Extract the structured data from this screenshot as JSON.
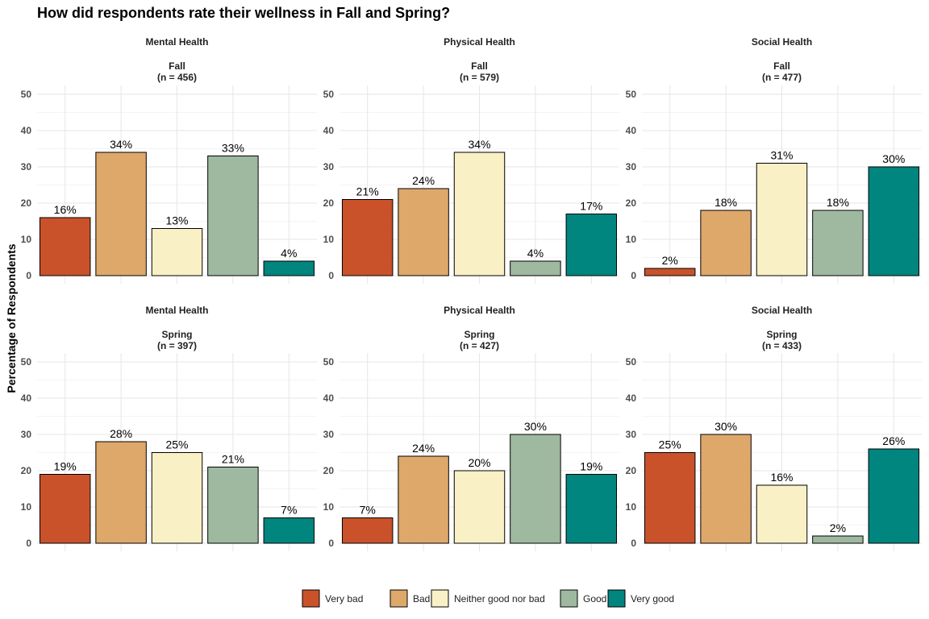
{
  "chart_data": {
    "type": "bar",
    "title": "How did respondents rate their wellness in Fall and Spring?",
    "ylabel": "Percentage of Respondents",
    "ylim": [
      0,
      50
    ],
    "yticks": [
      0,
      10,
      20,
      30,
      40,
      50
    ],
    "grid": true,
    "legend_position": "bottom",
    "categories": [
      "Very bad",
      "Bad",
      "Neither good nor bad",
      "Good",
      "Very good"
    ],
    "colors": {
      "Very bad": "#C9522B",
      "Bad": "#DEA86B",
      "Neither good nor bad": "#F9F0C6",
      "Good": "#9EB99F",
      "Very good": "#00857F"
    },
    "panels": [
      {
        "facet": "Mental Health",
        "season": "Fall",
        "n_label": "(n = 456)",
        "values": [
          16,
          34,
          13,
          33,
          4
        ],
        "labels": [
          "16%",
          "34%",
          "13%",
          "33%",
          "4%"
        ]
      },
      {
        "facet": "Physical Health",
        "season": "Fall",
        "n_label": "(n = 579)",
        "values": [
          21,
          24,
          34,
          4,
          17
        ],
        "labels": [
          "21%",
          "24%",
          "34%",
          "4%",
          "17%"
        ]
      },
      {
        "facet": "Social Health",
        "season": "Fall",
        "n_label": "(n = 477)",
        "values": [
          2,
          18,
          31,
          18,
          30
        ],
        "labels": [
          "2%",
          "18%",
          "31%",
          "18%",
          "30%"
        ]
      },
      {
        "facet": "Mental Health",
        "season": "Spring",
        "n_label": "(n = 397)",
        "values": [
          19,
          28,
          25,
          21,
          7
        ],
        "labels": [
          "19%",
          "28%",
          "25%",
          "21%",
          "7%"
        ]
      },
      {
        "facet": "Physical Health",
        "season": "Spring",
        "n_label": "(n = 427)",
        "values": [
          7,
          24,
          20,
          30,
          19
        ],
        "labels": [
          "7%",
          "24%",
          "20%",
          "30%",
          "19%"
        ]
      },
      {
        "facet": "Social Health",
        "season": "Spring",
        "n_label": "(n = 433)",
        "values": [
          25,
          30,
          16,
          2,
          26
        ],
        "labels": [
          "25%",
          "30%",
          "16%",
          "2%",
          "26%"
        ]
      }
    ]
  }
}
